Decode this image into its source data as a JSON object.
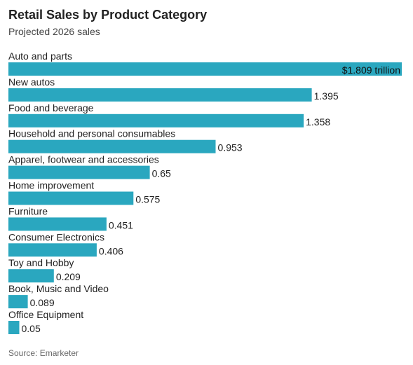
{
  "title": "Retail Sales by Product Category",
  "subtitle": "Projected 2026 sales",
  "source": "Source: Emarketer",
  "colors": {
    "bar": "#2aa7bf"
  },
  "chart_data": {
    "type": "bar",
    "orientation": "horizontal",
    "title": "Retail Sales by Product Category",
    "subtitle": "Projected 2026 sales",
    "categories": [
      "Auto and parts",
      "New autos",
      "Food and beverage",
      "Household and personal consumables",
      "Apparel, footwear and accessories",
      "Home improvement",
      "Furniture",
      "Consumer Electronics",
      "Toy and Hobby",
      "Book, Music and Video",
      "Office Equipment"
    ],
    "values": [
      1.809,
      1.395,
      1.358,
      0.953,
      0.65,
      0.575,
      0.451,
      0.406,
      0.209,
      0.089,
      0.05
    ],
    "value_labels": [
      "$1.809 trillion",
      "1.395",
      "1.358",
      "0.953",
      "0.65",
      "0.575",
      "0.451",
      "0.406",
      "0.209",
      "0.089",
      "0.05"
    ],
    "xlim": [
      0,
      1.809
    ],
    "grid": false,
    "legend": "none",
    "xlabel": "",
    "ylabel": ""
  }
}
